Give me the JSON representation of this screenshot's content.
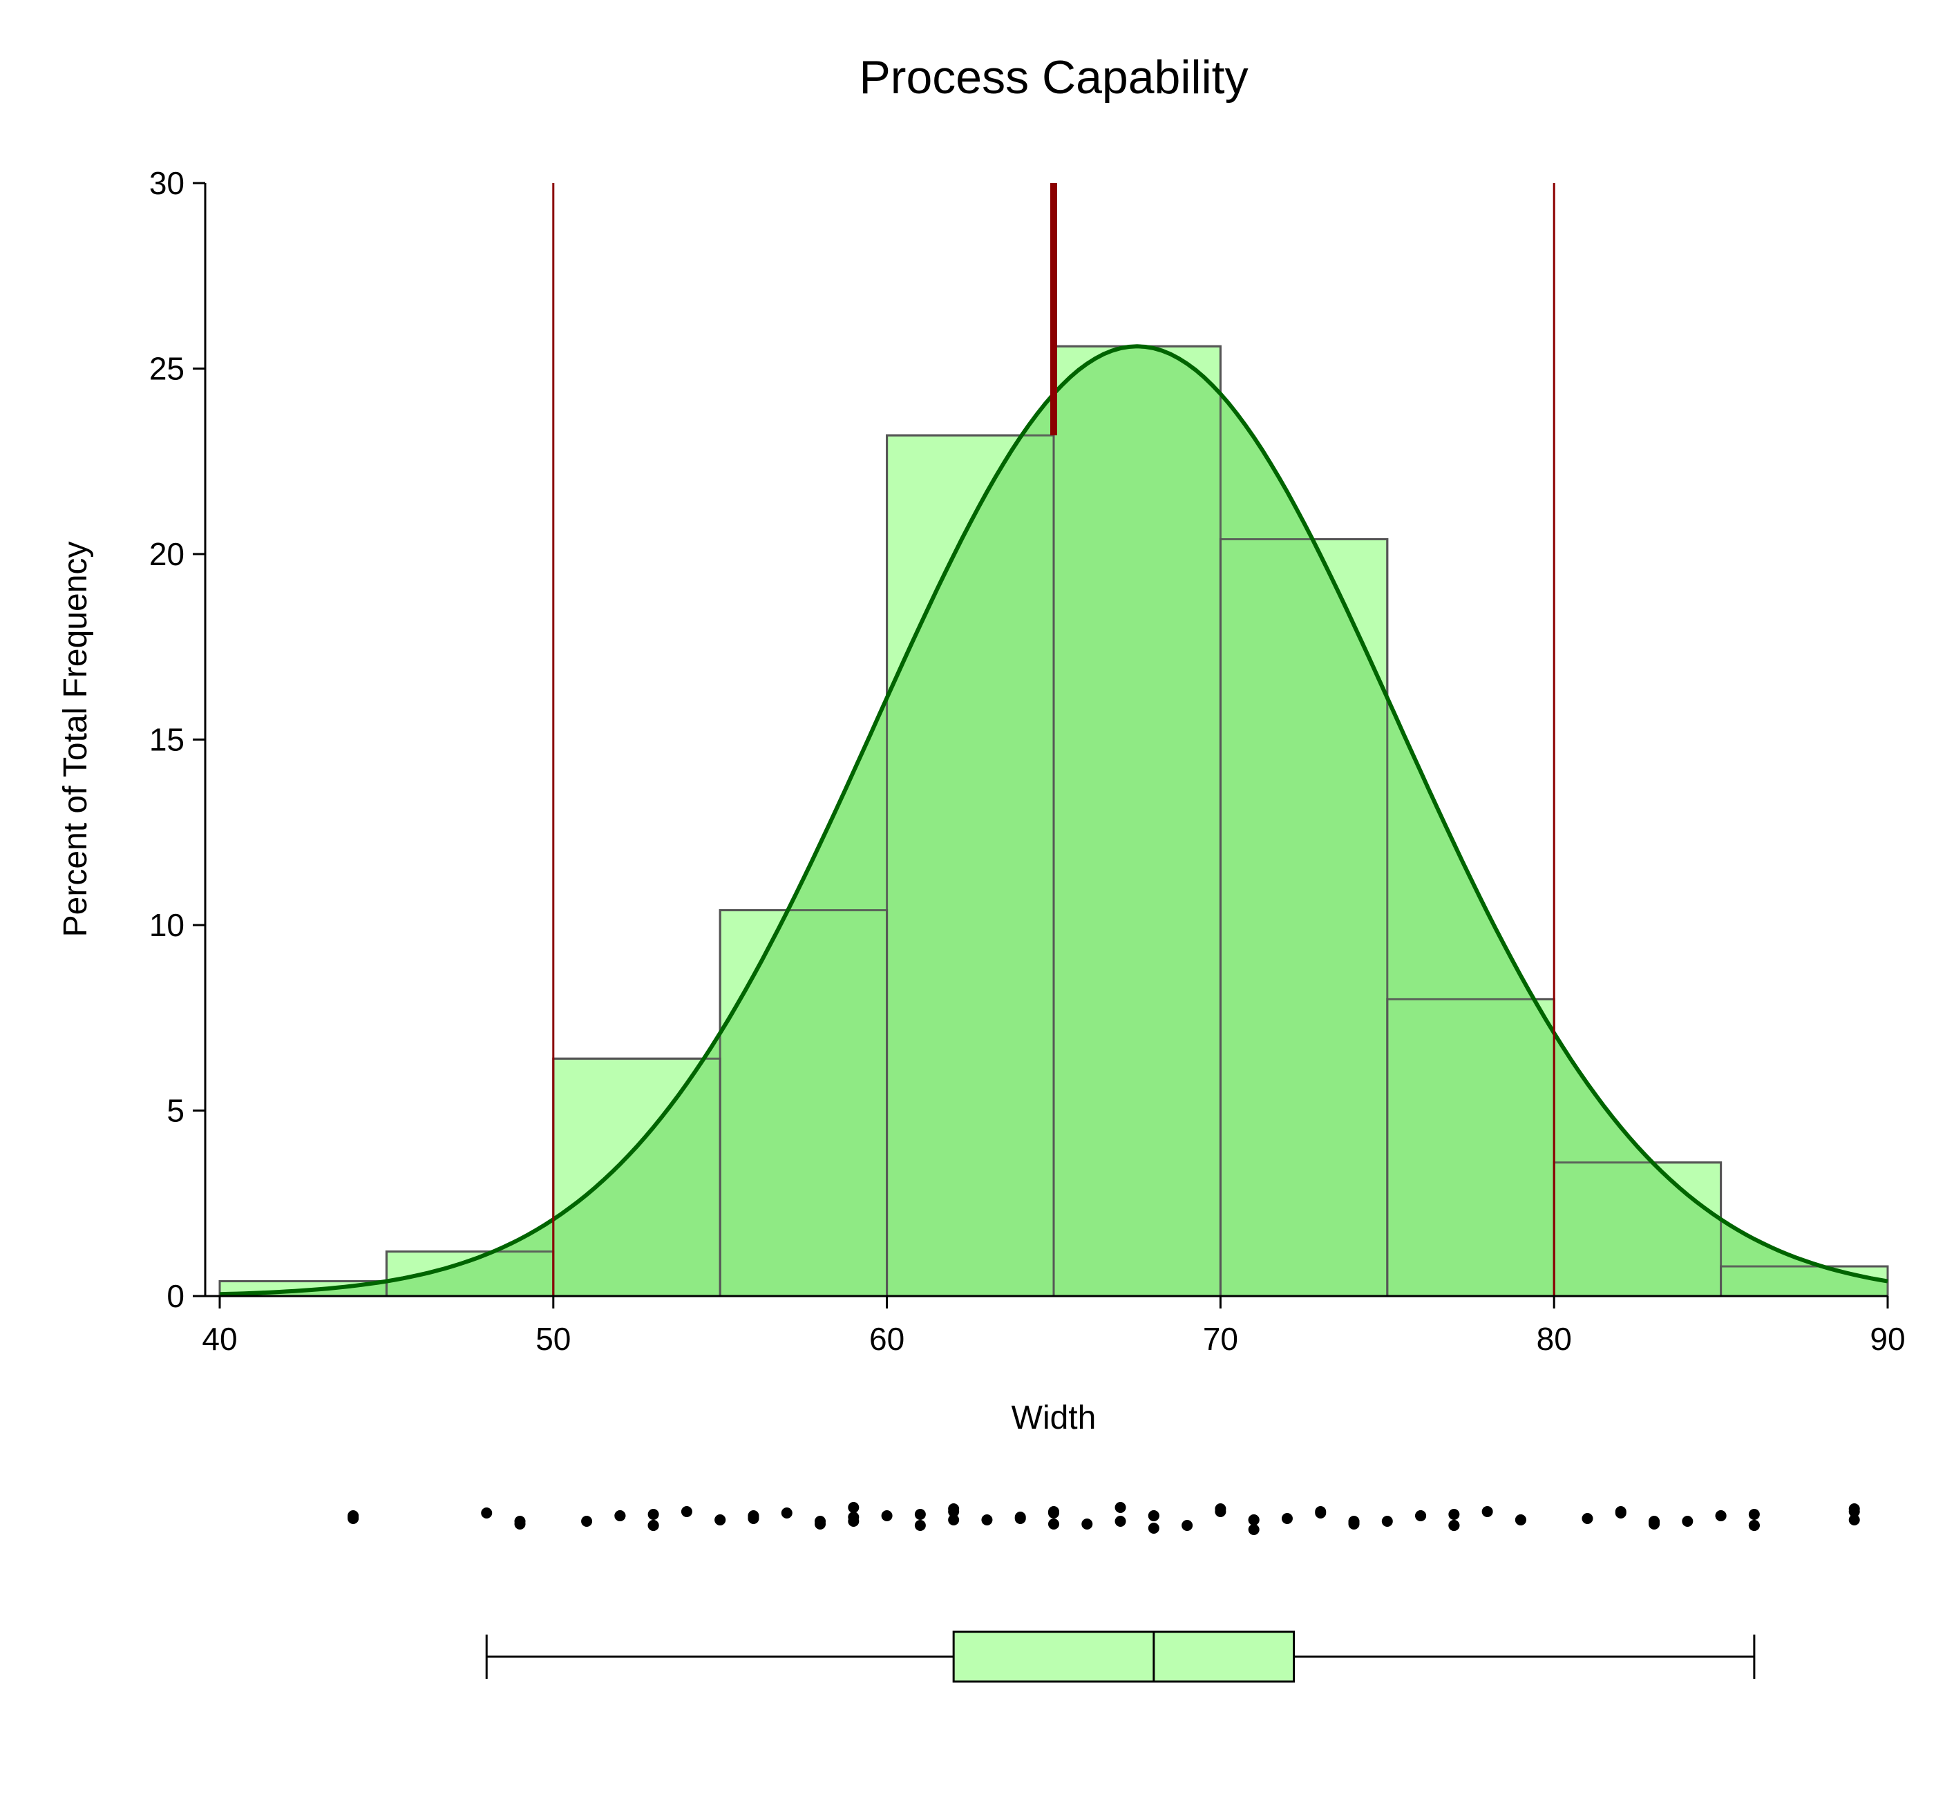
{
  "chart_data": {
    "type": "bar",
    "title": "Process Capability",
    "xlabel": "Width",
    "ylabel": "Percent of Total Frequency",
    "xlim": [
      40,
      90
    ],
    "ylim": [
      0,
      30
    ],
    "x_ticks": [
      "40",
      "50",
      "60",
      "70",
      "80",
      "90"
    ],
    "y_ticks": [
      "0",
      "5",
      "10",
      "15",
      "20",
      "25",
      "30"
    ],
    "bins": [
      {
        "start": 40,
        "end": 45,
        "percent": 0.4
      },
      {
        "start": 45,
        "end": 50,
        "percent": 1.2
      },
      {
        "start": 50,
        "end": 55,
        "percent": 6.4
      },
      {
        "start": 55,
        "end": 60,
        "percent": 10.4
      },
      {
        "start": 60,
        "end": 65,
        "percent": 23.2
      },
      {
        "start": 65,
        "end": 70,
        "percent": 25.6
      },
      {
        "start": 70,
        "end": 75,
        "percent": 20.4
      },
      {
        "start": 75,
        "end": 80,
        "percent": 8.0
      },
      {
        "start": 80,
        "end": 85,
        "percent": 3.6
      },
      {
        "start": 85,
        "end": 90,
        "percent": 0.8
      }
    ],
    "normal_curve": {
      "mean": 67.5,
      "sd": 7.8,
      "peak_percent": 25.6
    },
    "spec_limits": {
      "lower": 50,
      "target": 65,
      "upper": 80
    },
    "strip_values": [
      44,
      48,
      49,
      51,
      52,
      53,
      54,
      55,
      56,
      57,
      58,
      59,
      60,
      61,
      62,
      63,
      64,
      65,
      66,
      67,
      68,
      69,
      70,
      71,
      72,
      73,
      74,
      75,
      76,
      77,
      78,
      79,
      81,
      82,
      83,
      84,
      85,
      86,
      89
    ],
    "boxplot": {
      "whisker_low": 48,
      "q1": 62,
      "median": 68,
      "q3": 72.2,
      "whisker_high": 86
    },
    "colors": {
      "bar_fill": "#bbffb0",
      "bar_stroke": "#555555",
      "curve_fill": "#8fea84",
      "curve_line": "#006400",
      "spec_line": "#8b0000"
    }
  }
}
